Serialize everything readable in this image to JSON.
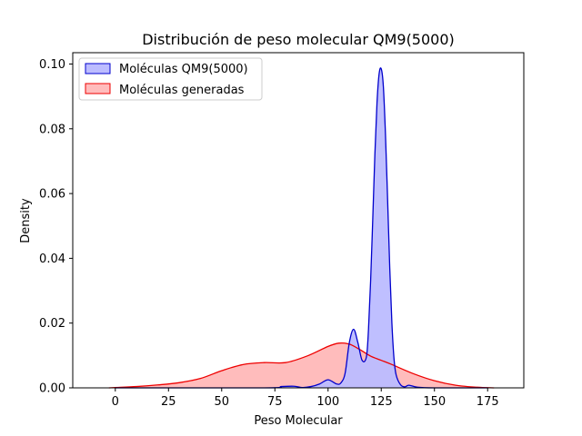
{
  "chart_data": {
    "type": "area",
    "title": "Distribución de peso molecular QM9(5000)",
    "xlabel": "Peso Molecular",
    "ylabel": "Density",
    "xlim": [
      -20,
      192
    ],
    "ylim": [
      0,
      0.1035
    ],
    "xticks": [
      0,
      25,
      50,
      75,
      100,
      125,
      150,
      175
    ],
    "yticks": [
      0.0,
      0.02,
      0.04,
      0.06,
      0.08,
      0.1
    ],
    "ytick_labels": [
      "0.00",
      "0.02",
      "0.04",
      "0.06",
      "0.08",
      "0.10"
    ],
    "grid": false,
    "legend_position": "top-left",
    "series": [
      {
        "name": "Moléculas QM9(5000)",
        "color": "#0000cc",
        "fill": "#bcbcff",
        "x": [
          0,
          70,
          78,
          84,
          88,
          92,
          96,
          100,
          104,
          106,
          108,
          110,
          112,
          114,
          116,
          118,
          119,
          120,
          121,
          122,
          123,
          124,
          125,
          126,
          127,
          128,
          129,
          130,
          131,
          132,
          134,
          136,
          138,
          142,
          150,
          175
        ],
        "y": [
          0.0,
          0.0,
          0.0004,
          0.0005,
          0.0001,
          0.0004,
          0.0012,
          0.0025,
          0.0012,
          0.0015,
          0.0045,
          0.014,
          0.0181,
          0.014,
          0.0085,
          0.0095,
          0.018,
          0.033,
          0.052,
          0.072,
          0.088,
          0.097,
          0.0985,
          0.093,
          0.078,
          0.058,
          0.037,
          0.02,
          0.009,
          0.004,
          0.001,
          0.0003,
          0.0008,
          0.0002,
          0.0,
          0.0
        ]
      },
      {
        "name": "Moléculas generadas",
        "color": "#ee0000",
        "fill": "#ffbcbc",
        "x": [
          -3,
          0,
          10,
          20,
          30,
          40,
          50,
          60,
          70,
          80,
          90,
          100,
          105,
          110,
          115,
          120,
          125,
          130,
          140,
          150,
          160,
          170,
          178
        ],
        "y": [
          0.0,
          0.0001,
          0.0004,
          0.0009,
          0.0016,
          0.0029,
          0.0053,
          0.0072,
          0.0078,
          0.0078,
          0.0098,
          0.0128,
          0.0138,
          0.0135,
          0.0118,
          0.0098,
          0.0085,
          0.0072,
          0.0044,
          0.0022,
          0.0008,
          0.0002,
          0.0
        ]
      }
    ]
  }
}
